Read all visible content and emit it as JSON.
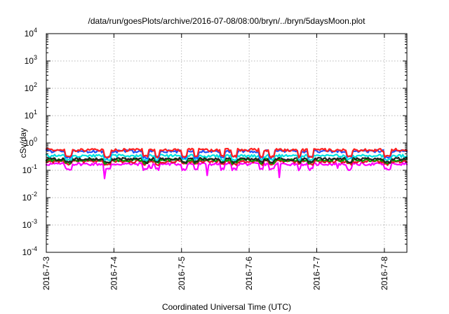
{
  "chart_data": {
    "type": "line",
    "title": "/data/run/goesPlots/archive/2016-07-08/08:00/bryn/../bryn/5daysMoon.plot",
    "xlabel": "Coordinated Universal Time (UTC)",
    "ylabel": "cSv/day",
    "y_scale": "log",
    "ylim": [
      0.0001,
      10000
    ],
    "y_tick_labels": [
      {
        "base": "10",
        "exp": "-4",
        "value": 0.0001
      },
      {
        "base": "10",
        "exp": "-3",
        "value": 0.001
      },
      {
        "base": "10",
        "exp": "-2",
        "value": 0.01
      },
      {
        "base": "10",
        "exp": "-1",
        "value": 0.1
      },
      {
        "base": "10",
        "exp": "0",
        "value": 1
      },
      {
        "base": "10",
        "exp": "1",
        "value": 10
      },
      {
        "base": "10",
        "exp": "2",
        "value": 100
      },
      {
        "base": "10",
        "exp": "3",
        "value": 1000
      },
      {
        "base": "10",
        "exp": "4",
        "value": 10000
      }
    ],
    "xlim": [
      "2016-07-03T00:00",
      "2016-07-08T08:00"
    ],
    "x_tick_labels": [
      "2016-7-3",
      "2016-7-4",
      "2016-7-5",
      "2016-7-6",
      "2016-7-7",
      "2016-7-8"
    ],
    "grid": true,
    "series": [
      {
        "color": "#ff00ff",
        "level": 0.17,
        "low_level": 0.11,
        "dips": [
          {
            "t": 0.86,
            "v": 0.05
          },
          {
            "t": 2.38,
            "v": 0.065
          },
          {
            "t": 3.45,
            "v": 0.055
          },
          {
            "t": 1.55,
            "v": 0.12
          },
          {
            "t": 4.3,
            "v": 0.12
          }
        ]
      },
      {
        "color": "#e8102a",
        "level": 0.21,
        "low_level": 0.17,
        "dips": []
      },
      {
        "color": "#00a000",
        "level": 0.24,
        "low_level": 0.19,
        "dips": []
      },
      {
        "color": "#222222",
        "level": 0.26,
        "low_level": 0.2,
        "dips": []
      },
      {
        "color": "#00e0e0",
        "level": 0.34,
        "low_level": 0.25,
        "dips": []
      },
      {
        "color": "#2050ff",
        "level": 0.5,
        "low_level": 0.3,
        "dips": []
      },
      {
        "color": "#ff2020",
        "level": 0.56,
        "low_level": 0.32,
        "dips": []
      }
    ]
  }
}
